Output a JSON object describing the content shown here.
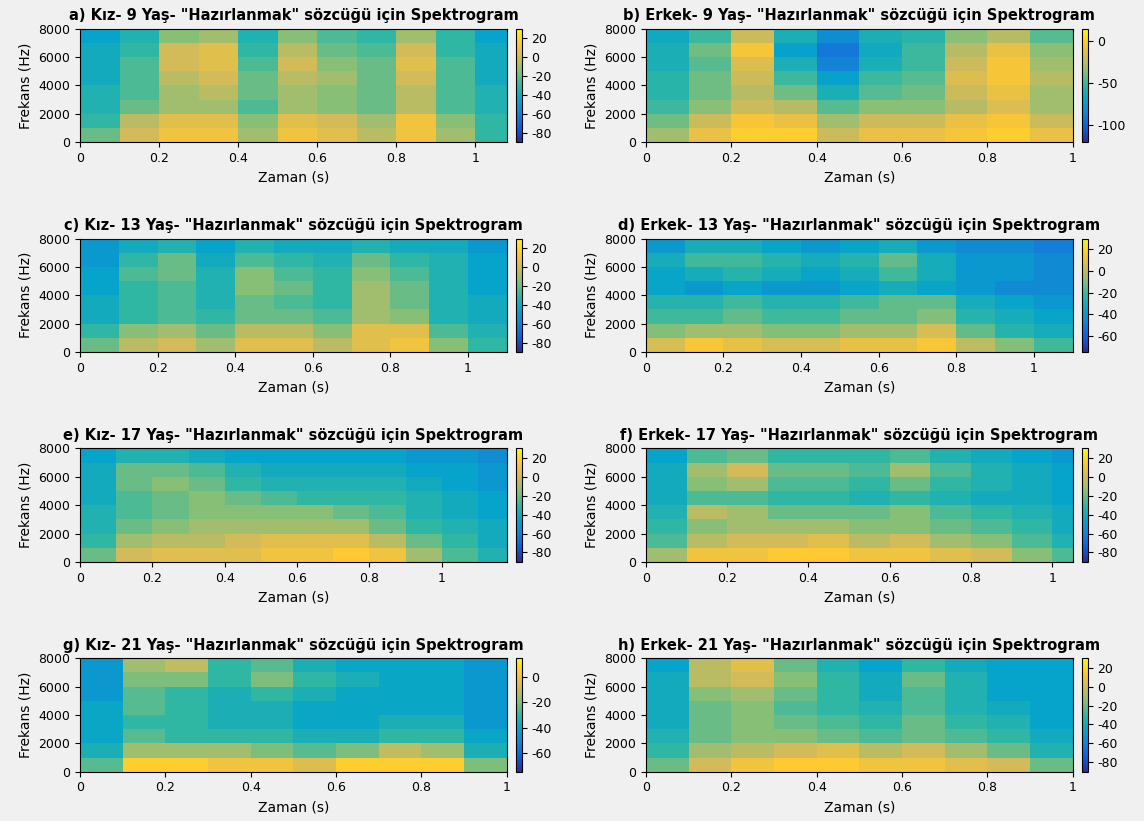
{
  "chart_data": [
    {
      "type": "heatmap",
      "title": "a) Kız- 9 Yaş- \"Hazırlanmak\" sözcüğü için Spektrogram",
      "x_label": "Zaman (s)",
      "y_label": "Frekans (Hz)",
      "xlim": [
        0,
        1.08
      ],
      "xticks": [
        0,
        0.2,
        0.4,
        0.6,
        0.8,
        1
      ],
      "ylim": [
        0,
        8000
      ],
      "yticks": [
        0,
        2000,
        4000,
        6000,
        8000
      ],
      "x_edges": [
        0,
        0.1,
        0.2,
        0.3,
        0.4,
        0.5,
        0.6,
        0.7,
        0.8,
        0.9,
        1.0,
        1.08
      ],
      "y_edges": [
        0,
        1000,
        2000,
        3000,
        4000,
        5000,
        6000,
        7000,
        8000
      ],
      "cells": [
        [
          -20,
          0,
          10,
          10,
          -10,
          10,
          5,
          -5,
          10,
          -10,
          -30
        ],
        [
          -30,
          -5,
          5,
          5,
          -15,
          5,
          0,
          -10,
          10,
          -15,
          -30
        ],
        [
          -35,
          -20,
          -10,
          -10,
          -25,
          -10,
          -15,
          -20,
          -5,
          -25,
          -35
        ],
        [
          -35,
          -25,
          -10,
          -5,
          -20,
          -10,
          -15,
          -20,
          -5,
          -25,
          -35
        ],
        [
          -40,
          -25,
          -5,
          0,
          -20,
          -5,
          -10,
          -20,
          0,
          -25,
          -40
        ],
        [
          -40,
          -25,
          0,
          5,
          -25,
          0,
          -15,
          -20,
          5,
          -25,
          -40
        ],
        [
          -40,
          -30,
          0,
          5,
          -30,
          -5,
          -20,
          -25,
          0,
          -30,
          -40
        ],
        [
          -45,
          -35,
          -15,
          -10,
          -35,
          -15,
          -25,
          -30,
          -10,
          -30,
          -45
        ]
      ],
      "colorbar": {
        "range": [
          -90,
          30
        ],
        "ticks": [
          20,
          0,
          -20,
          -40,
          -60,
          -80
        ]
      }
    },
    {
      "type": "heatmap",
      "title": "b) Erkek- 9 Yaş- \"Hazırlanmak\" sözcüğü için Spektrogram",
      "x_label": "Zaman (s)",
      "y_label": "Frekans (Hz)",
      "xlim": [
        0,
        1.0
      ],
      "xticks": [
        0,
        0.2,
        0.4,
        0.6,
        0.8,
        1
      ],
      "ylim": [
        0,
        8000
      ],
      "yticks": [
        0,
        2000,
        4000,
        6000,
        8000
      ],
      "x_edges": [
        0,
        0.1,
        0.2,
        0.3,
        0.4,
        0.5,
        0.6,
        0.7,
        0.8,
        0.9,
        1.0
      ],
      "y_edges": [
        0,
        1000,
        2000,
        3000,
        4000,
        5000,
        6000,
        7000,
        8000
      ],
      "cells": [
        [
          -30,
          -10,
          0,
          0,
          -20,
          -10,
          -10,
          -5,
          0,
          -10
        ],
        [
          -40,
          -20,
          -5,
          -10,
          -30,
          -20,
          -20,
          -10,
          -5,
          -20
        ],
        [
          -50,
          -35,
          -20,
          -25,
          -45,
          -35,
          -35,
          -25,
          -15,
          -30
        ],
        [
          -55,
          -40,
          -25,
          -40,
          -60,
          -45,
          -40,
          -20,
          -10,
          -30
        ],
        [
          -55,
          -40,
          -20,
          -50,
          -70,
          -50,
          -45,
          -15,
          -5,
          -25
        ],
        [
          -60,
          -45,
          -15,
          -60,
          -85,
          -60,
          -50,
          -20,
          -5,
          -30
        ],
        [
          -60,
          -40,
          -5,
          -70,
          -90,
          -65,
          -50,
          -25,
          -10,
          -35
        ],
        [
          -65,
          -50,
          -20,
          -60,
          -80,
          -60,
          -55,
          -35,
          -25,
          -45
        ]
      ],
      "colorbar": {
        "range": [
          -120,
          15
        ],
        "ticks": [
          0,
          -50,
          -100
        ]
      }
    },
    {
      "type": "heatmap",
      "title": "c) Kız- 13 Yaş- \"Hazırlanmak\" sözcüğü için Spektrogram",
      "x_label": "Zaman (s)",
      "y_label": "Frekans (Hz)",
      "xlim": [
        0,
        1.1
      ],
      "xticks": [
        0,
        0.2,
        0.4,
        0.6,
        0.8,
        1
      ],
      "ylim": [
        0,
        8000
      ],
      "yticks": [
        0,
        2000,
        4000,
        6000,
        8000
      ],
      "x_edges": [
        0,
        0.1,
        0.2,
        0.3,
        0.4,
        0.5,
        0.6,
        0.7,
        0.8,
        0.9,
        1.0,
        1.1
      ],
      "y_edges": [
        0,
        1000,
        2000,
        3000,
        4000,
        5000,
        6000,
        7000,
        8000
      ],
      "cells": [
        [
          -20,
          -5,
          0,
          -10,
          5,
          5,
          -5,
          5,
          10,
          -15,
          -30
        ],
        [
          -30,
          -15,
          -10,
          -20,
          -5,
          -5,
          -15,
          5,
          5,
          -25,
          -35
        ],
        [
          -40,
          -30,
          -25,
          -30,
          -20,
          -20,
          -25,
          -10,
          -15,
          -35,
          -40
        ],
        [
          -40,
          -30,
          -25,
          -35,
          -20,
          -25,
          -30,
          -10,
          -20,
          -35,
          -40
        ],
        [
          -45,
          -30,
          -25,
          -35,
          -15,
          -20,
          -30,
          -10,
          -20,
          -35,
          -45
        ],
        [
          -45,
          -25,
          -20,
          -35,
          -15,
          -25,
          -30,
          -15,
          -25,
          -35,
          -45
        ],
        [
          -50,
          -30,
          -20,
          -40,
          -25,
          -30,
          -35,
          -20,
          -30,
          -35,
          -45
        ],
        [
          -50,
          -40,
          -35,
          -45,
          -35,
          -40,
          -40,
          -35,
          -40,
          -40,
          -50
        ]
      ],
      "colorbar": {
        "range": [
          -90,
          30
        ],
        "ticks": [
          20,
          0,
          -20,
          -40,
          -60,
          -80
        ]
      }
    },
    {
      "type": "heatmap",
      "title": "d) Erkek- 13 Yaş- \"Hazırlanmak\" sözcüğü için Spektrogram",
      "x_label": "Zaman (s)",
      "y_label": "Frekans (Hz)",
      "xlim": [
        0,
        1.1
      ],
      "xticks": [
        0,
        0.2,
        0.4,
        0.6,
        0.8,
        1
      ],
      "ylim": [
        0,
        8000
      ],
      "yticks": [
        0,
        2000,
        4000,
        6000,
        8000
      ],
      "x_edges": [
        0,
        0.1,
        0.2,
        0.3,
        0.4,
        0.5,
        0.6,
        0.7,
        0.8,
        0.9,
        1.0,
        1.1
      ],
      "y_edges": [
        0,
        1000,
        2000,
        3000,
        4000,
        5000,
        6000,
        7000,
        8000
      ],
      "cells": [
        [
          5,
          15,
          10,
          5,
          5,
          10,
          10,
          15,
          0,
          -10,
          -20
        ],
        [
          -10,
          -5,
          -5,
          -10,
          -10,
          -5,
          -5,
          5,
          -15,
          -25,
          -30
        ],
        [
          -20,
          -20,
          -15,
          -20,
          -20,
          -15,
          -15,
          -10,
          -25,
          -30,
          -35
        ],
        [
          -25,
          -25,
          -20,
          -25,
          -25,
          -20,
          -15,
          -15,
          -30,
          -35,
          -40
        ],
        [
          -35,
          -40,
          -35,
          -40,
          -40,
          -35,
          -30,
          -35,
          -40,
          -45,
          -45
        ],
        [
          -35,
          -30,
          -25,
          -30,
          -35,
          -30,
          -20,
          -30,
          -40,
          -40,
          -45
        ],
        [
          -30,
          -20,
          -20,
          -25,
          -30,
          -25,
          -15,
          -30,
          -40,
          -40,
          -45
        ],
        [
          -40,
          -30,
          -30,
          -35,
          -40,
          -35,
          -30,
          -40,
          -45,
          -45,
          -50
        ]
      ],
      "colorbar": {
        "range": [
          -75,
          30
        ],
        "ticks": [
          20,
          0,
          -20,
          -40,
          -60
        ]
      }
    },
    {
      "type": "heatmap",
      "title": "e) Kız- 17 Yaş- \"Hazırlanmak\" sözcüğü için Spektrogram",
      "x_label": "Zaman (s)",
      "y_label": "Frekans (Hz)",
      "xlim": [
        0,
        1.18
      ],
      "xticks": [
        0,
        0.2,
        0.4,
        0.6,
        0.8,
        1
      ],
      "ylim": [
        0,
        8000
      ],
      "yticks": [
        0,
        2000,
        4000,
        6000,
        8000
      ],
      "x_edges": [
        0,
        0.1,
        0.2,
        0.3,
        0.4,
        0.5,
        0.6,
        0.7,
        0.8,
        0.9,
        1.0,
        1.1,
        1.18
      ],
      "y_edges": [
        0,
        1000,
        2000,
        3000,
        4000,
        5000,
        6000,
        7000,
        8000
      ],
      "cells": [
        [
          -20,
          0,
          5,
          5,
          5,
          10,
          10,
          15,
          10,
          -10,
          -25,
          -35
        ],
        [
          -30,
          -10,
          -5,
          -5,
          0,
          5,
          5,
          5,
          -5,
          -20,
          -30,
          -40
        ],
        [
          -35,
          -20,
          -15,
          -10,
          -10,
          -10,
          -10,
          -10,
          -20,
          -30,
          -35,
          -40
        ],
        [
          -35,
          -25,
          -20,
          -15,
          -15,
          -15,
          -15,
          -20,
          -25,
          -35,
          -40,
          -45
        ],
        [
          -40,
          -25,
          -20,
          -15,
          -20,
          -25,
          -30,
          -30,
          -30,
          -35,
          -40,
          -45
        ],
        [
          -40,
          -20,
          -15,
          -20,
          -30,
          -35,
          -35,
          -35,
          -35,
          -40,
          -45,
          -50
        ],
        [
          -40,
          -20,
          -20,
          -25,
          -35,
          -40,
          -40,
          -40,
          -40,
          -45,
          -45,
          -50
        ],
        [
          -45,
          -35,
          -35,
          -40,
          -45,
          -45,
          -45,
          -45,
          -45,
          -50,
          -50,
          -55
        ]
      ],
      "colorbar": {
        "range": [
          -90,
          30
        ],
        "ticks": [
          20,
          0,
          -20,
          -40,
          -60,
          -80
        ]
      }
    },
    {
      "type": "heatmap",
      "title": "f) Erkek- 17 Yaş- \"Hazırlanmak\" sözcüğü için Spektrogram",
      "x_label": "Zaman (s)",
      "y_label": "Frekans (Hz)",
      "xlim": [
        0,
        1.05
      ],
      "xticks": [
        0,
        0.2,
        0.4,
        0.6,
        0.8,
        1
      ],
      "ylim": [
        0,
        8000
      ],
      "yticks": [
        0,
        2000,
        4000,
        6000,
        8000
      ],
      "x_edges": [
        0,
        0.1,
        0.2,
        0.3,
        0.4,
        0.5,
        0.6,
        0.7,
        0.8,
        0.9,
        1.0,
        1.05
      ],
      "y_edges": [
        0,
        1000,
        2000,
        3000,
        4000,
        5000,
        6000,
        7000,
        8000
      ],
      "cells": [
        [
          -10,
          10,
          10,
          15,
          15,
          10,
          10,
          5,
          0,
          -15,
          -25
        ],
        [
          -25,
          -5,
          0,
          0,
          5,
          -5,
          0,
          -10,
          -15,
          -25,
          -35
        ],
        [
          -30,
          -15,
          -10,
          -10,
          -10,
          -15,
          -15,
          -20,
          -25,
          -30,
          -40
        ],
        [
          -35,
          -5,
          -10,
          -20,
          -20,
          -20,
          -15,
          -25,
          -30,
          -35,
          -40
        ],
        [
          -40,
          -25,
          -25,
          -30,
          -30,
          -35,
          -30,
          -35,
          -40,
          -40,
          -45
        ],
        [
          -40,
          -15,
          -10,
          -25,
          -25,
          -30,
          -20,
          -30,
          -35,
          -40,
          -45
        ],
        [
          -40,
          -10,
          0,
          -20,
          -20,
          -25,
          -10,
          -25,
          -35,
          -40,
          -45
        ],
        [
          -45,
          -25,
          -20,
          -30,
          -30,
          -30,
          -25,
          -35,
          -40,
          -45,
          -50
        ]
      ],
      "colorbar": {
        "range": [
          -90,
          30
        ],
        "ticks": [
          20,
          0,
          -20,
          -40,
          -60,
          -80
        ]
      }
    },
    {
      "type": "heatmap",
      "title": "g) Kız- 21 Yaş- \"Hazırlanmak\" sözcüğü için Spektrogram",
      "x_label": "Zaman (s)",
      "y_label": "Frekans (Hz)",
      "xlim": [
        0,
        1.0
      ],
      "xticks": [
        0,
        0.2,
        0.4,
        0.6,
        0.8,
        1
      ],
      "ylim": [
        0,
        8000
      ],
      "yticks": [
        0,
        2000,
        4000,
        6000,
        8000
      ],
      "x_edges": [
        0,
        0.1,
        0.2,
        0.3,
        0.4,
        0.5,
        0.6,
        0.7,
        0.8,
        0.9,
        1.0
      ],
      "y_edges": [
        0,
        1000,
        2000,
        3000,
        4000,
        5000,
        6000,
        7000,
        8000
      ],
      "cells": [
        [
          -25,
          5,
          5,
          0,
          0,
          -5,
          5,
          5,
          5,
          -20
        ],
        [
          -35,
          -15,
          -15,
          -15,
          -20,
          -25,
          -20,
          -10,
          -15,
          -35
        ],
        [
          -40,
          -25,
          -30,
          -30,
          -30,
          -35,
          -35,
          -30,
          -30,
          -40
        ],
        [
          -40,
          -30,
          -30,
          -35,
          -35,
          -40,
          -40,
          -35,
          -35,
          -45
        ],
        [
          -40,
          -25,
          -30,
          -35,
          -35,
          -40,
          -40,
          -40,
          -40,
          -45
        ],
        [
          -45,
          -25,
          -30,
          -35,
          -30,
          -35,
          -40,
          -40,
          -40,
          -45
        ],
        [
          -45,
          -20,
          -20,
          -30,
          -20,
          -30,
          -35,
          -40,
          -40,
          -45
        ],
        [
          -45,
          -15,
          -10,
          -30,
          -25,
          -35,
          -40,
          -40,
          -40,
          -45
        ]
      ],
      "colorbar": {
        "range": [
          -75,
          15
        ],
        "ticks": [
          0,
          -20,
          -40,
          -60
        ]
      }
    },
    {
      "type": "heatmap",
      "title": "h) Erkek- 21 Yaş- \"Hazırlanmak\" sözcüğü için Spektrogram",
      "x_label": "Zaman (s)",
      "y_label": "Frekans (Hz)",
      "xlim": [
        0,
        1.0
      ],
      "xticks": [
        0,
        0.2,
        0.4,
        0.6,
        0.8,
        1
      ],
      "ylim": [
        0,
        8000
      ],
      "yticks": [
        0,
        2000,
        4000,
        6000,
        8000
      ],
      "x_edges": [
        0,
        0.1,
        0.2,
        0.3,
        0.4,
        0.5,
        0.6,
        0.7,
        0.8,
        0.9,
        1.0
      ],
      "y_edges": [
        0,
        1000,
        2000,
        3000,
        4000,
        5000,
        6000,
        7000,
        8000
      ],
      "cells": [
        [
          -20,
          0,
          10,
          15,
          15,
          10,
          10,
          5,
          0,
          -20
        ],
        [
          -30,
          -10,
          -5,
          0,
          5,
          -5,
          0,
          -10,
          -20,
          -35
        ],
        [
          -35,
          -20,
          -15,
          -15,
          -20,
          -25,
          -20,
          -25,
          -30,
          -40
        ],
        [
          -40,
          -20,
          -15,
          -20,
          -25,
          -30,
          -20,
          -30,
          -35,
          -45
        ],
        [
          -40,
          -20,
          -15,
          -25,
          -30,
          -35,
          -25,
          -35,
          -40,
          -45
        ],
        [
          -40,
          -15,
          -10,
          -20,
          -30,
          -40,
          -25,
          -35,
          -45,
          -45
        ],
        [
          -40,
          -5,
          0,
          -15,
          -30,
          -40,
          -20,
          -35,
          -45,
          -45
        ],
        [
          -45,
          -5,
          5,
          -20,
          -35,
          -45,
          -30,
          -40,
          -45,
          -45
        ]
      ],
      "colorbar": {
        "range": [
          -90,
          30
        ],
        "ticks": [
          20,
          0,
          -20,
          -40,
          -60,
          -80
        ]
      }
    }
  ]
}
